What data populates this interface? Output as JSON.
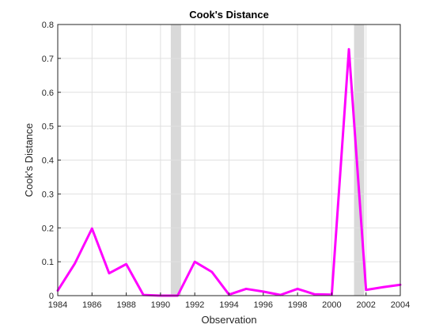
{
  "chart_data": {
    "type": "line",
    "title": "Cook's  Distance",
    "xlabel": "Observation",
    "ylabel": "Cook's Distance",
    "xlim": [
      1984,
      2004
    ],
    "ylim": [
      0,
      0.8
    ],
    "xticks": [
      1984,
      1986,
      1988,
      1990,
      1992,
      1994,
      1996,
      1998,
      2000,
      2002,
      2004
    ],
    "yticks": [
      0,
      0.1,
      0.2,
      0.3,
      0.4,
      0.5,
      0.6,
      0.7,
      0.8
    ],
    "grid": true,
    "shaded_spans": [
      [
        1990.6,
        1991.2
      ],
      [
        2001.3,
        2001.9
      ]
    ],
    "colors": {
      "line": "#ff00ff",
      "span": "#d9d9d9",
      "grid": "#e0e0e0",
      "axis": "#262626"
    },
    "series": [
      {
        "x": [
          1984,
          1985,
          1986,
          1987,
          1988,
          1989,
          1990,
          1991,
          1992,
          1993,
          1994,
          1995,
          1996,
          1997,
          1998,
          1999,
          2000,
          2001,
          2002,
          2003,
          2004
        ],
        "values": [
          0.015,
          0.095,
          0.198,
          0.066,
          0.093,
          0.002,
          0.0,
          0.0,
          0.1,
          0.07,
          0.003,
          0.02,
          0.012,
          0.002,
          0.02,
          0.004,
          0.003,
          0.727,
          0.017,
          0.025,
          0.032
        ]
      }
    ]
  }
}
